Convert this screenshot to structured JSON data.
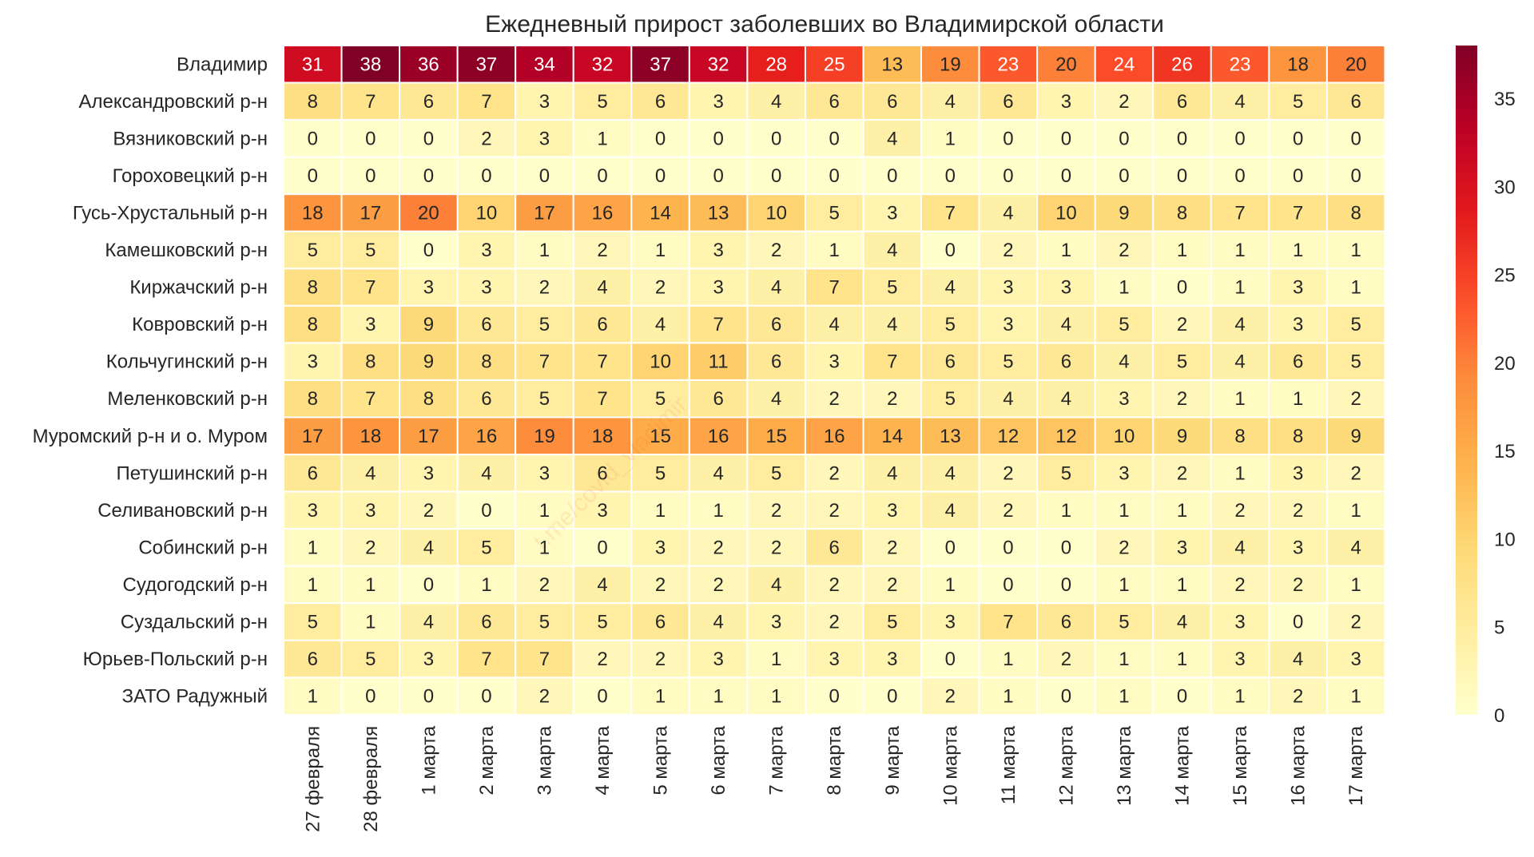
{
  "chart_data": {
    "type": "heatmap",
    "title": "Ежедневный прирост заболевших во Владимирской области",
    "rows": [
      "Владимир",
      "Александровский р-н",
      "Вязниковский р-н",
      "Гороховецкий р-н",
      "Гусь-Хрустальный р-н",
      "Камешковский р-н",
      "Киржачский р-н",
      "Ковровский р-н",
      "Кольчугинский р-н",
      "Меленковский р-н",
      "Муромский р-н и о. Муром",
      "Петушинский р-н",
      "Селивановский р-н",
      "Собинский р-н",
      "Судогодский р-н",
      "Суздальский р-н",
      "Юрьев-Польский р-н",
      "ЗАТО Радужный"
    ],
    "columns": [
      "27 февраля",
      "28 февраля",
      "1 марта",
      "2 марта",
      "3 марта",
      "4 марта",
      "5 марта",
      "6 марта",
      "7 марта",
      "8 марта",
      "9 марта",
      "10 марта",
      "11 марта",
      "12 марта",
      "13 марта",
      "14 марта",
      "15 марта",
      "16 марта",
      "17 марта"
    ],
    "values": [
      [
        31,
        38,
        36,
        37,
        34,
        32,
        37,
        32,
        28,
        25,
        13,
        19,
        23,
        20,
        24,
        26,
        23,
        18,
        20
      ],
      [
        8,
        7,
        6,
        7,
        3,
        5,
        6,
        3,
        4,
        6,
        6,
        4,
        6,
        3,
        2,
        6,
        4,
        5,
        6
      ],
      [
        0,
        0,
        0,
        2,
        3,
        1,
        0,
        0,
        0,
        0,
        4,
        1,
        0,
        0,
        0,
        0,
        0,
        0,
        0
      ],
      [
        0,
        0,
        0,
        0,
        0,
        0,
        0,
        0,
        0,
        0,
        0,
        0,
        0,
        0,
        0,
        0,
        0,
        0,
        0
      ],
      [
        18,
        17,
        20,
        10,
        17,
        16,
        14,
        13,
        10,
        5,
        3,
        7,
        4,
        10,
        9,
        8,
        7,
        7,
        8
      ],
      [
        5,
        5,
        0,
        3,
        1,
        2,
        1,
        3,
        2,
        1,
        4,
        0,
        2,
        1,
        2,
        1,
        1,
        1,
        1
      ],
      [
        8,
        7,
        3,
        3,
        2,
        4,
        2,
        3,
        4,
        7,
        5,
        4,
        3,
        3,
        1,
        0,
        1,
        3,
        1
      ],
      [
        8,
        3,
        9,
        6,
        5,
        6,
        4,
        7,
        6,
        4,
        4,
        5,
        3,
        4,
        5,
        2,
        4,
        3,
        5
      ],
      [
        3,
        8,
        9,
        8,
        7,
        7,
        10,
        11,
        6,
        3,
        7,
        6,
        5,
        6,
        4,
        5,
        4,
        6,
        5
      ],
      [
        8,
        7,
        8,
        6,
        5,
        7,
        5,
        6,
        4,
        2,
        2,
        5,
        4,
        4,
        3,
        2,
        1,
        1,
        2
      ],
      [
        17,
        18,
        17,
        16,
        19,
        18,
        15,
        16,
        15,
        16,
        14,
        13,
        12,
        12,
        10,
        9,
        8,
        8,
        9
      ],
      [
        6,
        4,
        3,
        4,
        3,
        6,
        5,
        4,
        5,
        2,
        4,
        4,
        2,
        5,
        3,
        2,
        1,
        3,
        2
      ],
      [
        3,
        3,
        2,
        0,
        1,
        3,
        1,
        1,
        2,
        2,
        3,
        4,
        2,
        1,
        1,
        1,
        2,
        2,
        1
      ],
      [
        1,
        2,
        4,
        5,
        1,
        0,
        3,
        2,
        2,
        6,
        2,
        0,
        0,
        0,
        2,
        3,
        4,
        3,
        4
      ],
      [
        1,
        1,
        0,
        1,
        2,
        4,
        2,
        2,
        4,
        2,
        2,
        1,
        0,
        0,
        1,
        1,
        2,
        2,
        1
      ],
      [
        5,
        1,
        4,
        6,
        5,
        5,
        6,
        4,
        3,
        2,
        5,
        3,
        7,
        6,
        5,
        4,
        3,
        0,
        2
      ],
      [
        6,
        5,
        3,
        7,
        7,
        2,
        2,
        3,
        1,
        3,
        3,
        0,
        1,
        2,
        1,
        1,
        3,
        4,
        3
      ],
      [
        1,
        0,
        0,
        0,
        2,
        0,
        1,
        1,
        1,
        0,
        0,
        2,
        1,
        0,
        1,
        0,
        1,
        2,
        1
      ]
    ],
    "vmin": 0,
    "vmax": 38,
    "colormap": "YlOrRd",
    "colorbar_ticks": [
      0,
      5,
      10,
      15,
      20,
      25,
      30,
      35
    ],
    "watermark": "t.me/covid_vladimir"
  }
}
